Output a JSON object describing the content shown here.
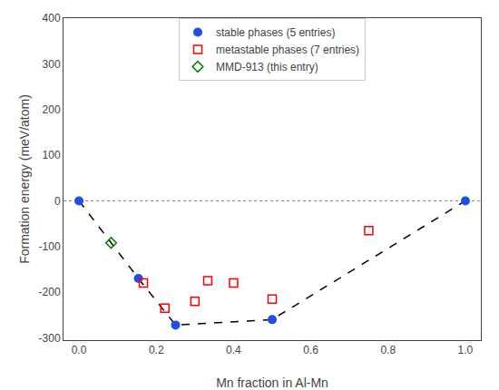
{
  "chart_data": {
    "type": "scatter",
    "xlabel": "Mn fraction in Al-Mn",
    "ylabel": "Formation energy (meV/atom)",
    "xlim": [
      -0.04,
      1.04
    ],
    "ylim": [
      -305,
      400
    ],
    "xticks": [
      {
        "value": 0.0,
        "label": "0.0"
      },
      0.2,
      0.4,
      0.6,
      0.8,
      {
        "value": 1.0,
        "label": "1.0"
      }
    ],
    "yticks": [
      -300,
      -200,
      -100,
      0,
      100,
      200,
      300,
      400
    ],
    "grid": false,
    "legend": "upper center",
    "series": [
      {
        "type": "hline",
        "color": "gray",
        "line_style": "dotted",
        "values": [
          0
        ]
      },
      {
        "type": "line",
        "color": "black",
        "line_style": "dashed",
        "x": [
          0.0,
          0.1538,
          0.25,
          0.5,
          1.0
        ],
        "values": [
          0,
          -170,
          -272,
          -260,
          0
        ]
      },
      {
        "type": "scatter",
        "name": "stable phases (5 entries)",
        "color": "#1f4ee8",
        "marker": "circle",
        "x": [
          0.0,
          0.1538,
          0.25,
          0.5,
          1.0
        ],
        "values": [
          0,
          -170,
          -272,
          -260,
          0
        ]
      },
      {
        "type": "scatter",
        "name": "metastable phases (7 entries)",
        "color": "red",
        "marker": "square-open",
        "x": [
          0.1667,
          0.2222,
          0.3,
          0.3333,
          0.4,
          0.5,
          0.75
        ],
        "values": [
          -180,
          -235,
          -220,
          -175,
          -180,
          -215,
          -65
        ]
      },
      {
        "type": "scatter",
        "name": "MMD-913 (this entry)",
        "color": "green",
        "marker": "diamond-open",
        "x": [
          0.0833
        ],
        "values": [
          -92
        ]
      }
    ]
  }
}
